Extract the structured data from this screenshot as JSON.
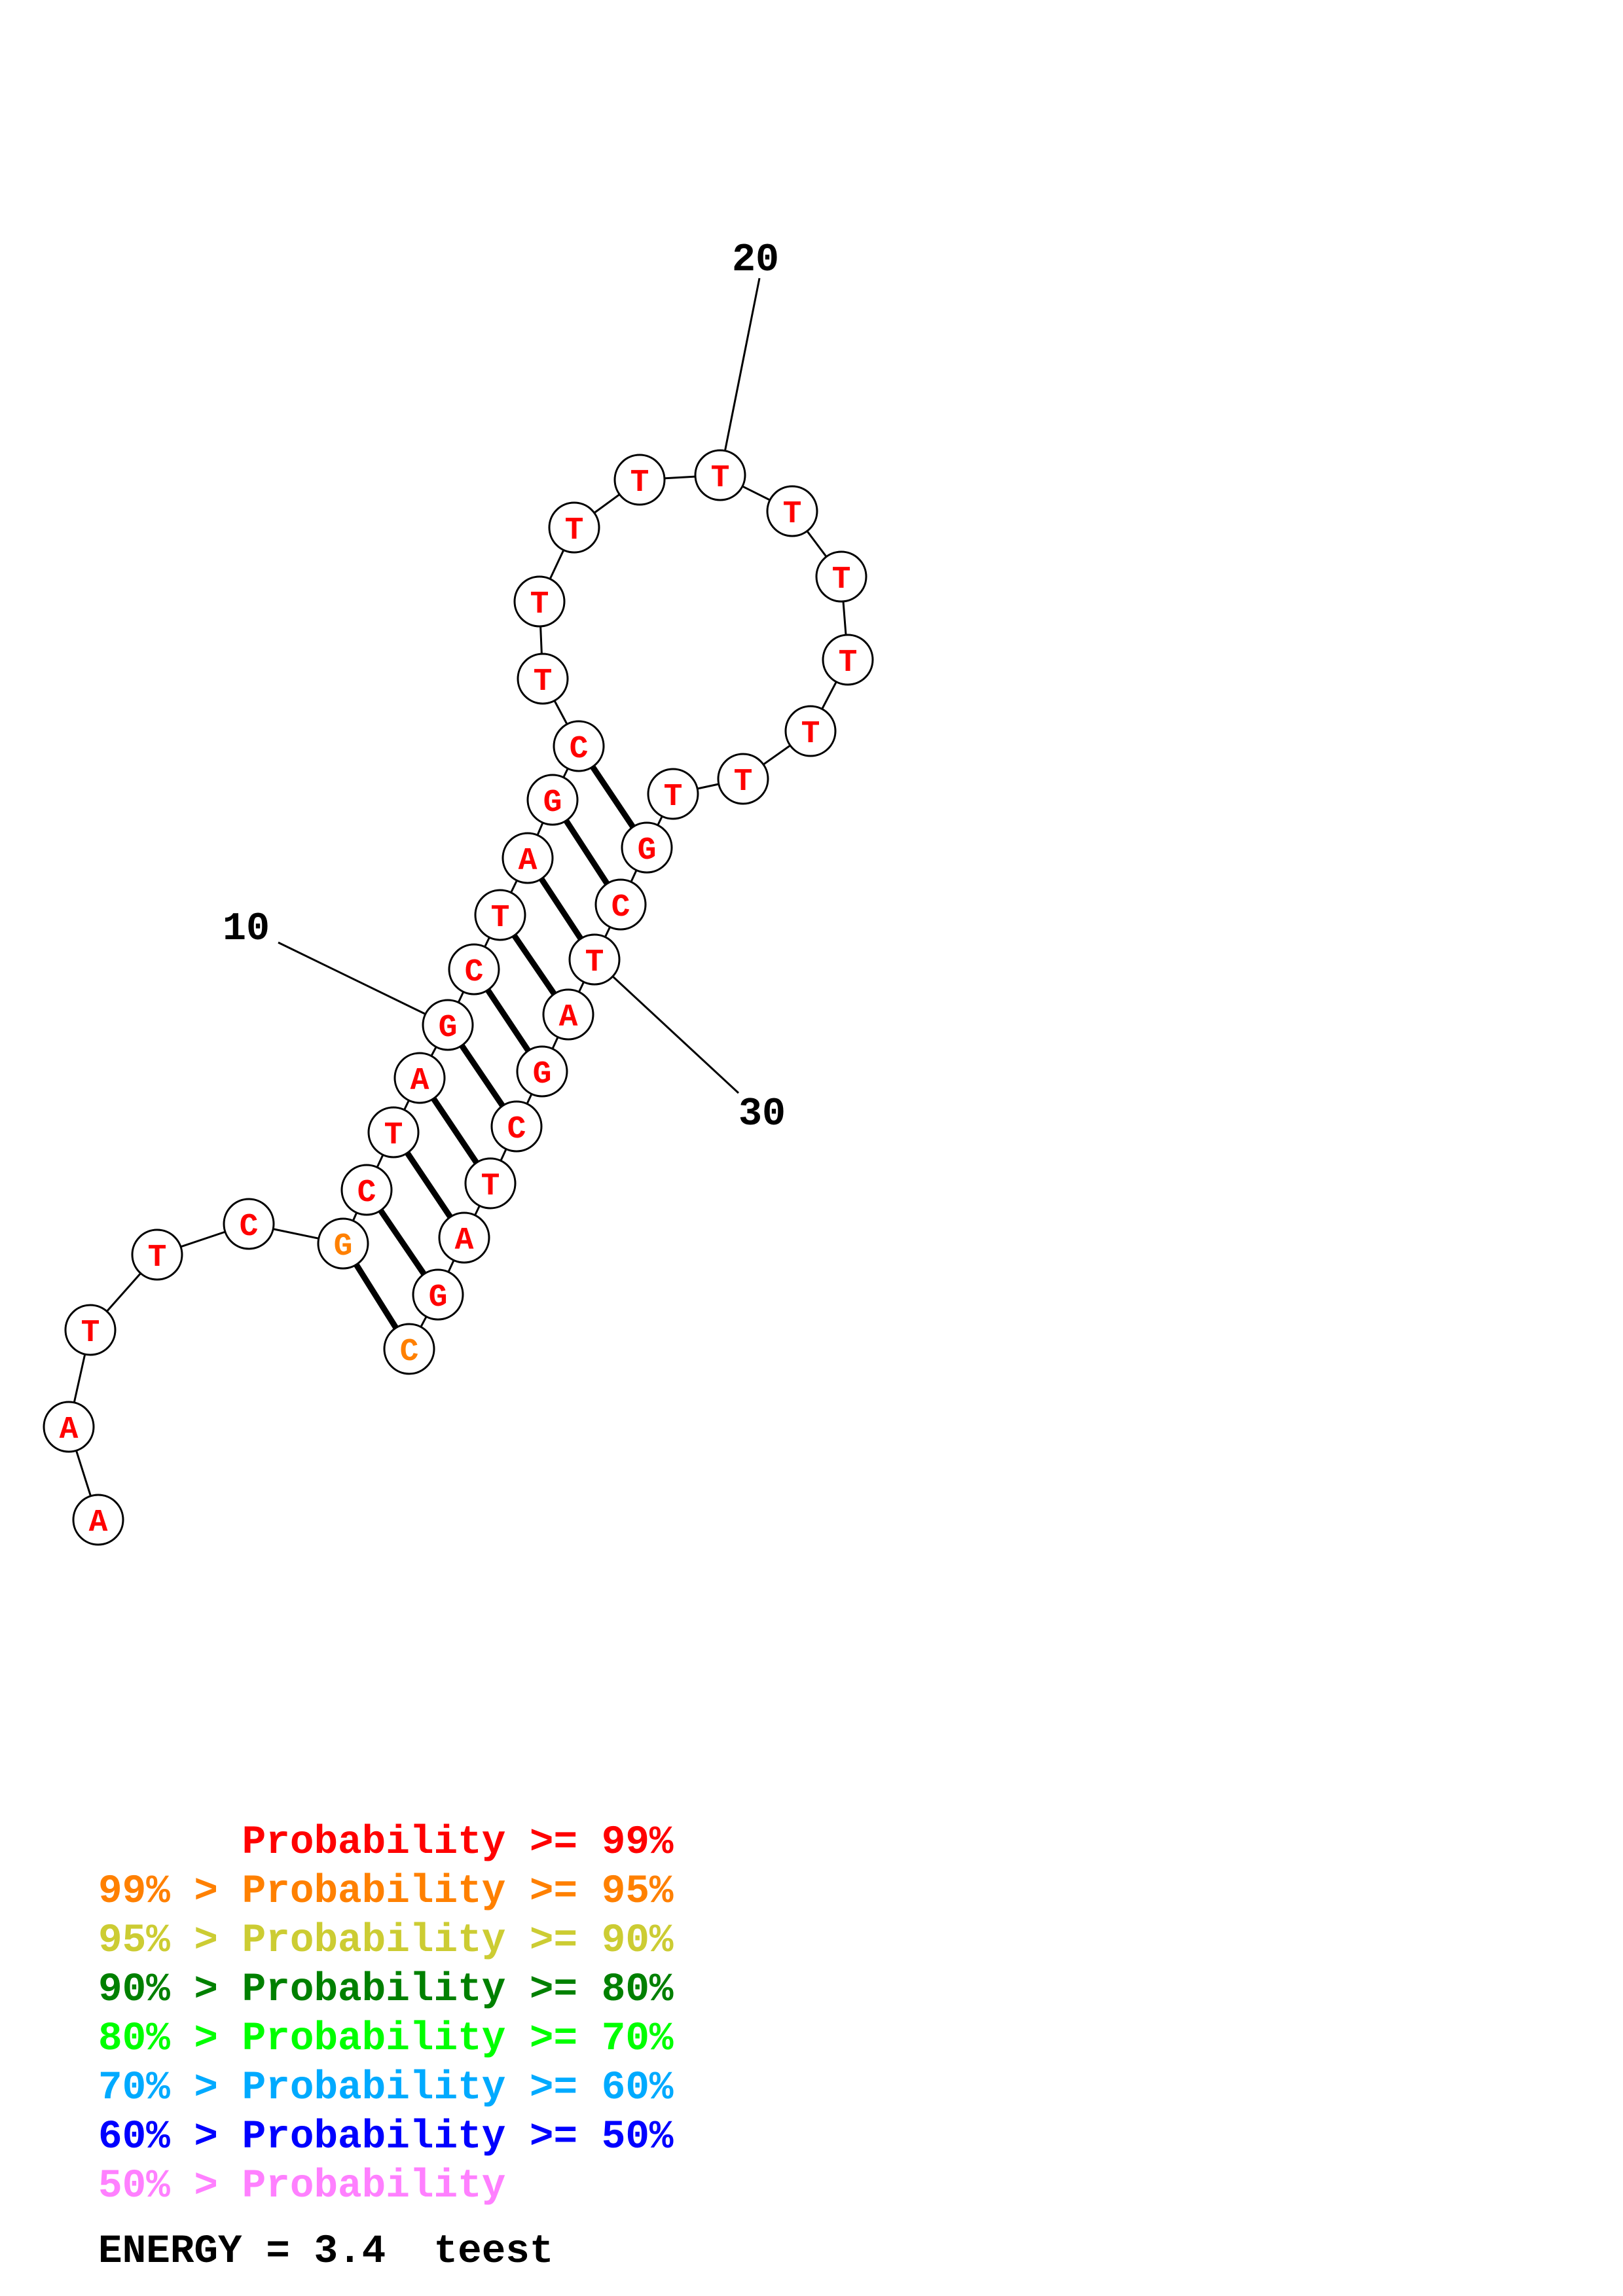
{
  "structure": {
    "sequence": [
      "A",
      "A",
      "T",
      "T",
      "C",
      "G",
      "C",
      "T",
      "A",
      "G",
      "C",
      "T",
      "A",
      "G",
      "C",
      "T",
      "T",
      "T",
      "T",
      "T",
      "T",
      "T",
      "T",
      "T",
      "T",
      "T",
      "G",
      "C",
      "T",
      "A",
      "G",
      "C",
      "T",
      "A",
      "G",
      "C"
    ],
    "pairs": [
      [
        6,
        36
      ],
      [
        7,
        35
      ],
      [
        8,
        34
      ],
      [
        9,
        33
      ],
      [
        10,
        32
      ],
      [
        11,
        31
      ],
      [
        12,
        30
      ],
      [
        13,
        29
      ],
      [
        14,
        28
      ],
      [
        15,
        27
      ]
    ],
    "probability_class": [
      "99",
      "99",
      "99",
      "99",
      "99",
      "95",
      "99",
      "99",
      "99",
      "99",
      "99",
      "99",
      "99",
      "99",
      "99",
      "99",
      "99",
      "99",
      "99",
      "99",
      "99",
      "99",
      "99",
      "99",
      "99",
      "99",
      "99",
      "99",
      "99",
      "99",
      "99",
      "99",
      "99",
      "99",
      "99",
      "95"
    ],
    "position_labels": [
      {
        "index": 10,
        "text": "10"
      },
      {
        "index": 20,
        "text": "20"
      },
      {
        "index": 30,
        "text": "30"
      }
    ]
  },
  "colors": {
    "99": "#ff0000",
    "95": "#ff8000",
    "90": "#cccc33",
    "80": "#008000",
    "70": "#00ff00",
    "60": "#00aaff",
    "50": "#0000ff",
    "0": "#ff80ff",
    "backbone": "#000000",
    "pair_bond": "#000000",
    "circle_fill": "#ffffff"
  },
  "legend": [
    {
      "class": "99",
      "text": "      Probability >= 99%"
    },
    {
      "class": "95",
      "text": "99% > Probability >= 95%"
    },
    {
      "class": "90",
      "text": "95% > Probability >= 90%"
    },
    {
      "class": "80",
      "text": "90% > Probability >= 80%"
    },
    {
      "class": "70",
      "text": "80% > Probability >= 70%"
    },
    {
      "class": "60",
      "text": "70% > Probability >= 60%"
    },
    {
      "class": "50",
      "text": "60% > Probability >= 50%"
    },
    {
      "class": "0",
      "text": "50% > Probability"
    }
  ],
  "energy_text": "ENERGY = 3.4  teest"
}
